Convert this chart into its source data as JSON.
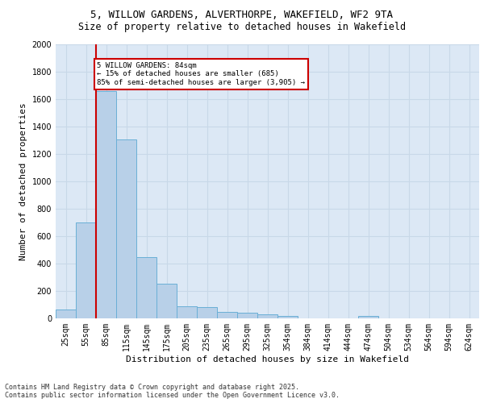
{
  "title_line1": "5, WILLOW GARDENS, ALVERTHORPE, WAKEFIELD, WF2 9TA",
  "title_line2": "Size of property relative to detached houses in Wakefield",
  "xlabel": "Distribution of detached houses by size in Wakefield",
  "ylabel": "Number of detached properties",
  "categories": [
    "25sqm",
    "55sqm",
    "85sqm",
    "115sqm",
    "145sqm",
    "175sqm",
    "205sqm",
    "235sqm",
    "265sqm",
    "295sqm",
    "325sqm",
    "354sqm",
    "384sqm",
    "414sqm",
    "444sqm",
    "474sqm",
    "504sqm",
    "534sqm",
    "564sqm",
    "594sqm",
    "624sqm"
  ],
  "values": [
    65,
    700,
    1660,
    1305,
    450,
    255,
    90,
    85,
    50,
    40,
    28,
    20,
    0,
    0,
    0,
    18,
    0,
    0,
    0,
    0,
    0
  ],
  "bar_color": "#b8d0e8",
  "bar_edge_color": "#6aafd6",
  "vline_x_idx": 1.5,
  "annotation_text": "5 WILLOW GARDENS: 84sqm\n← 15% of detached houses are smaller (685)\n85% of semi-detached houses are larger (3,905) →",
  "annotation_box_facecolor": "#ffffff",
  "annotation_box_edgecolor": "#cc0000",
  "vline_color": "#cc0000",
  "grid_color": "#c8d8e8",
  "background_color": "#dce8f5",
  "footer_line1": "Contains HM Land Registry data © Crown copyright and database right 2025.",
  "footer_line2": "Contains public sector information licensed under the Open Government Licence v3.0.",
  "ylim": [
    0,
    2000
  ],
  "yticks": [
    0,
    200,
    400,
    600,
    800,
    1000,
    1200,
    1400,
    1600,
    1800,
    2000
  ],
  "title_fontsize": 9,
  "subtitle_fontsize": 8.5,
  "ylabel_fontsize": 8,
  "xlabel_fontsize": 8,
  "tick_fontsize": 7,
  "footer_fontsize": 6
}
